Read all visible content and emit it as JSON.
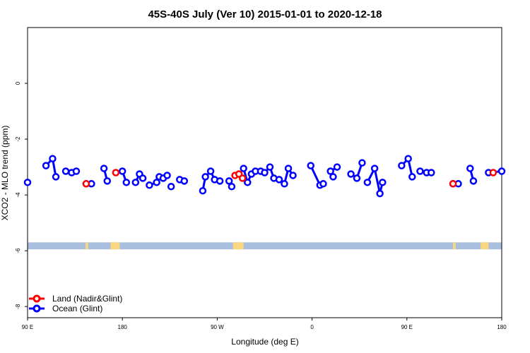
{
  "chart_data": {
    "type": "scatter",
    "title": "45S-40S July (Ver 10)   2015-01-01 to 2020-12-18",
    "xlabel": "Longitude (deg E)",
    "ylabel": "XCO2 - MLO trend (ppm)",
    "xlim": [
      90,
      450
    ],
    "ylim": [
      -8.4,
      2.0
    ],
    "x_ticks": [
      {
        "value": 90,
        "label": "90 E"
      },
      {
        "value": 162,
        "label": "180"
      },
      {
        "value": 234,
        "label": "90 W"
      },
      {
        "value": 306,
        "label": "0"
      },
      {
        "value": 378,
        "label": "90 E"
      },
      {
        "value": 450,
        "label": "180"
      }
    ],
    "y_ticks": [
      0,
      -2,
      -4,
      -6,
      -8
    ],
    "grid": false,
    "legend_position": "bottom-left",
    "colors": {
      "land": "#ff0000",
      "ocean": "#0000ff",
      "ocean_band": "#a9bfe0",
      "land_band": "#f9d77e"
    },
    "series": [
      {
        "name": "Land (Nadir&Glint)",
        "color": "#ff0000",
        "points": [
          {
            "x": 134.5,
            "y": -3.6
          },
          {
            "x": 157.0,
            "y": -3.2
          },
          {
            "x": 247.5,
            "y": -3.3
          },
          {
            "x": 250.5,
            "y": -3.25
          },
          {
            "x": 253.2,
            "y": -3.4
          },
          {
            "x": 413.0,
            "y": -3.6
          },
          {
            "x": 443.5,
            "y": -3.2
          }
        ]
      },
      {
        "name": "Ocean (Glint)",
        "color": "#0000ff",
        "segments": [
          [
            [
              90.0,
              -3.55
            ]
          ],
          [
            [
              104.0,
              -2.95
            ],
            [
              109.0,
              -2.7
            ],
            [
              111.5,
              -3.35
            ]
          ],
          [
            [
              119.0,
              -3.15
            ],
            [
              123.5,
              -3.2
            ],
            [
              127.0,
              -3.15
            ]
          ],
          [
            [
              134.5,
              -3.6
            ],
            [
              138.5,
              -3.6
            ]
          ],
          [
            [
              148.0,
              -3.05
            ],
            [
              150.5,
              -3.5
            ]
          ],
          [
            [
              162.0,
              -3.15
            ],
            [
              165.0,
              -3.55
            ]
          ],
          [
            [
              172.0,
              -3.55
            ],
            [
              175.0,
              -3.25
            ],
            [
              177.5,
              -3.4
            ]
          ],
          [
            [
              182.5,
              -3.65
            ],
            [
              188.0,
              -3.55
            ]
          ],
          [
            [
              190.0,
              -3.35
            ],
            [
              193.0,
              -3.4
            ],
            [
              196.0,
              -3.3
            ]
          ],
          [
            [
              199.0,
              -3.7
            ]
          ],
          [
            [
              205.5,
              -3.45
            ],
            [
              209.0,
              -3.5
            ]
          ],
          [
            [
              223.0,
              -3.85
            ],
            [
              225.0,
              -3.35
            ],
            [
              229.0,
              -3.15
            ],
            [
              232.0,
              -3.45
            ],
            [
              236.0,
              -3.5
            ]
          ],
          [
            [
              243.0,
              -3.5
            ],
            [
              245.0,
              -3.7
            ]
          ],
          [
            [
              254.0,
              -3.05
            ],
            [
              257.0,
              -3.55
            ],
            [
              260.0,
              -3.25
            ],
            [
              263.0,
              -3.15
            ]
          ],
          [
            [
              267.0,
              -3.15
            ],
            [
              270.0,
              -3.2
            ],
            [
              274.0,
              -3.0
            ],
            [
              277.0,
              -3.4
            ]
          ],
          [
            [
              281.0,
              -3.45
            ],
            [
              285.0,
              -3.6
            ],
            [
              288.0,
              -3.05
            ],
            [
              291.5,
              -3.3
            ]
          ],
          [
            [
              305.0,
              -2.95
            ],
            [
              312.0,
              -3.65
            ],
            [
              314.5,
              -3.6
            ]
          ],
          [
            [
              322.0,
              -3.35
            ]
          ],
          [
            [
              320.0,
              -3.15
            ],
            [
              325.0,
              -3.0
            ]
          ],
          [
            [
              335.5,
              -3.25
            ],
            [
              340.0,
              -3.4
            ],
            [
              344.0,
              -2.85
            ]
          ],
          [
            [
              348.0,
              -3.55
            ],
            [
              353.5,
              -3.05
            ],
            [
              357.5,
              -3.95
            ],
            [
              359.5,
              -3.55
            ]
          ],
          [
            [
              374.0,
              -2.95
            ],
            [
              379.0,
              -2.7
            ],
            [
              382.0,
              -3.35
            ]
          ],
          [
            [
              388.0,
              -3.15
            ],
            [
              393.0,
              -3.2
            ],
            [
              396.5,
              -3.2
            ]
          ],
          [
            [
              413.0,
              -3.6
            ],
            [
              417.0,
              -3.6
            ]
          ],
          [
            [
              426.0,
              -3.05
            ],
            [
              428.5,
              -3.5
            ]
          ],
          [
            [
              440.0,
              -3.2
            ],
            [
              450.0,
              -3.15
            ]
          ]
        ]
      }
    ],
    "map_band": {
      "y_range": [
        -5.7,
        -5.95
      ],
      "land_spans": [
        [
          134,
          136
        ],
        [
          153,
          160
        ],
        [
          246,
          254
        ],
        [
          413,
          415
        ],
        [
          434,
          440
        ]
      ]
    }
  }
}
